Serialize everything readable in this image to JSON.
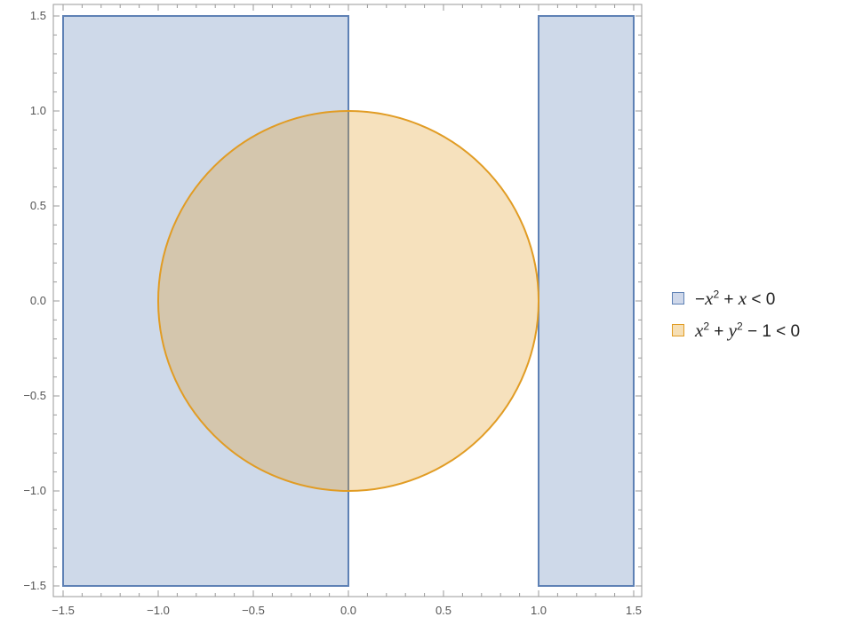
{
  "chart_data": {
    "type": "area",
    "title": "",
    "xlabel": "",
    "ylabel": "",
    "xlim": [
      -1.5,
      1.5
    ],
    "ylim": [
      -1.5,
      1.5
    ],
    "x_ticks": [
      "-1.5",
      "-1.0",
      "-0.5",
      "0.0",
      "0.5",
      "1.0",
      "1.5"
    ],
    "y_ticks": [
      "-1.5",
      "-1.0",
      "-0.5",
      "0.0",
      "0.5",
      "1.0",
      "1.5"
    ],
    "legend_position": "right",
    "series": [
      {
        "name": "-x^2 + x < 0",
        "label_parts": [
          "−",
          "x",
          "2",
          " + ",
          "x",
          " < 0"
        ],
        "regions": [
          {
            "x": [
              -1.5,
              0.0
            ],
            "y": [
              -1.5,
              1.5
            ]
          },
          {
            "x": [
              1.0,
              1.5
            ],
            "y": [
              -1.5,
              1.5
            ]
          }
        ],
        "fill_color": "#5e81b5",
        "edge_color": "#5e81b5"
      },
      {
        "name": "x^2 + y^2 - 1 < 0",
        "label_parts": [
          "x",
          "2",
          " + ",
          "y",
          "2",
          " − 1 < 0"
        ],
        "regions": [
          {
            "shape": "disk",
            "center": [
              0,
              0
            ],
            "radius": 1.0
          }
        ],
        "fill_color": "#e19c24",
        "edge_color": "#e19c24"
      }
    ]
  }
}
